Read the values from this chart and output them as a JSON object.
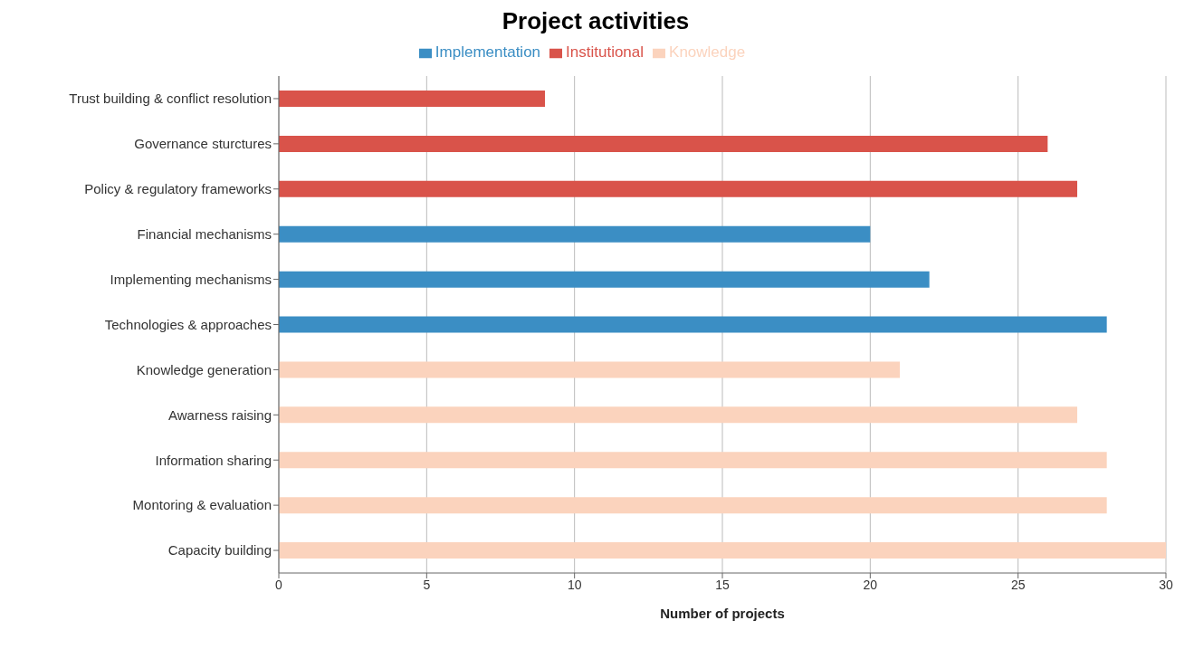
{
  "chart_data": {
    "type": "bar",
    "title": "Project activities",
    "xlabel": "Number of projects",
    "orientation": "horizontal",
    "stacked": true,
    "categories": [
      "Trust building & conflict resolution",
      "Governance sturctures",
      "Policy & regulatory frameworks",
      "Financial mechanisms",
      "Implementing mechanisms",
      "Technologies & approaches",
      "Knowledge generation",
      "Awarness raising",
      "Information sharing",
      "Montoring & evaluation",
      "Capacity building"
    ],
    "series": [
      {
        "name": "Knowledge",
        "color": "#fbd3bd",
        "values": [
          null,
          null,
          null,
          null,
          null,
          null,
          21,
          27,
          28,
          28,
          30
        ]
      },
      {
        "name": "Implementation",
        "color": "#3b8ec4",
        "values": [
          null,
          null,
          null,
          20,
          22,
          28,
          null,
          null,
          null,
          null,
          null
        ]
      },
      {
        "name": "Institutional",
        "color": "#d9534a",
        "values": [
          9,
          26,
          27,
          null,
          null,
          null,
          null,
          null,
          null,
          null,
          null
        ]
      }
    ],
    "xlim": [
      0,
      30
    ],
    "xticks": [
      0,
      5,
      10,
      15,
      20,
      25,
      30
    ],
    "grid": "x",
    "legend": "top"
  }
}
